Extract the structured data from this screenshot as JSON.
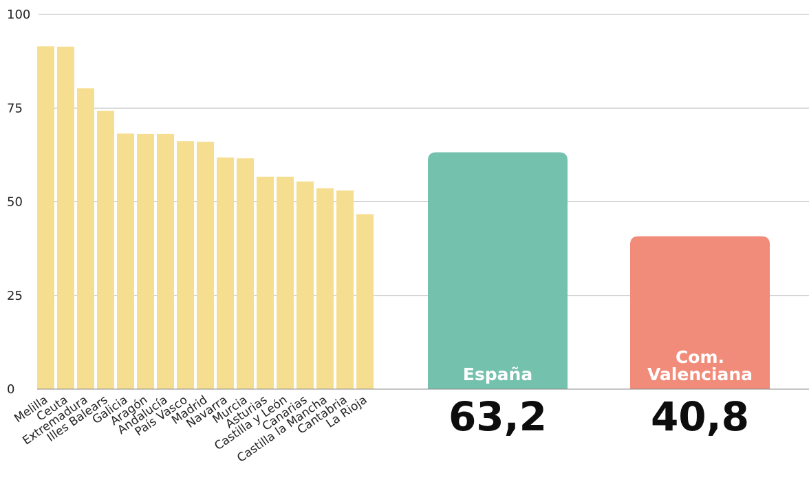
{
  "chart_data": [
    {
      "type": "bar",
      "title": "",
      "xlabel": "",
      "ylabel": "",
      "ylim": [
        0,
        100
      ],
      "yticks": [
        0,
        25,
        50,
        75,
        100
      ],
      "grid": true,
      "categories": [
        "Melilla",
        "Ceuta",
        "Extremadura",
        "Illes Balears",
        "Galicia",
        "Aragón",
        "Andalucía",
        "País Vasco",
        "Madrid",
        "Navarra",
        "Murcia",
        "Asturias",
        "Castilla y León",
        "Canarias",
        "Castilla la Mancha",
        "Cantabria",
        "La Rioja"
      ],
      "values": [
        91.5,
        91.4,
        80.3,
        74.3,
        68.2,
        68.1,
        68.1,
        66.2,
        66.0,
        61.8,
        61.6,
        56.7,
        56.7,
        55.4,
        53.6,
        53.0,
        46.7
      ],
      "color": "#f6de90"
    },
    {
      "type": "bar",
      "categories": [
        "España",
        "Com. Valenciana"
      ],
      "category_lines": [
        [
          "España"
        ],
        [
          "Com.",
          "Valenciana"
        ]
      ],
      "values": [
        63.2,
        40.8
      ],
      "value_labels": [
        "63,2",
        "40,8"
      ],
      "colors": [
        "#74c1ad",
        "#f18b7a"
      ]
    }
  ]
}
